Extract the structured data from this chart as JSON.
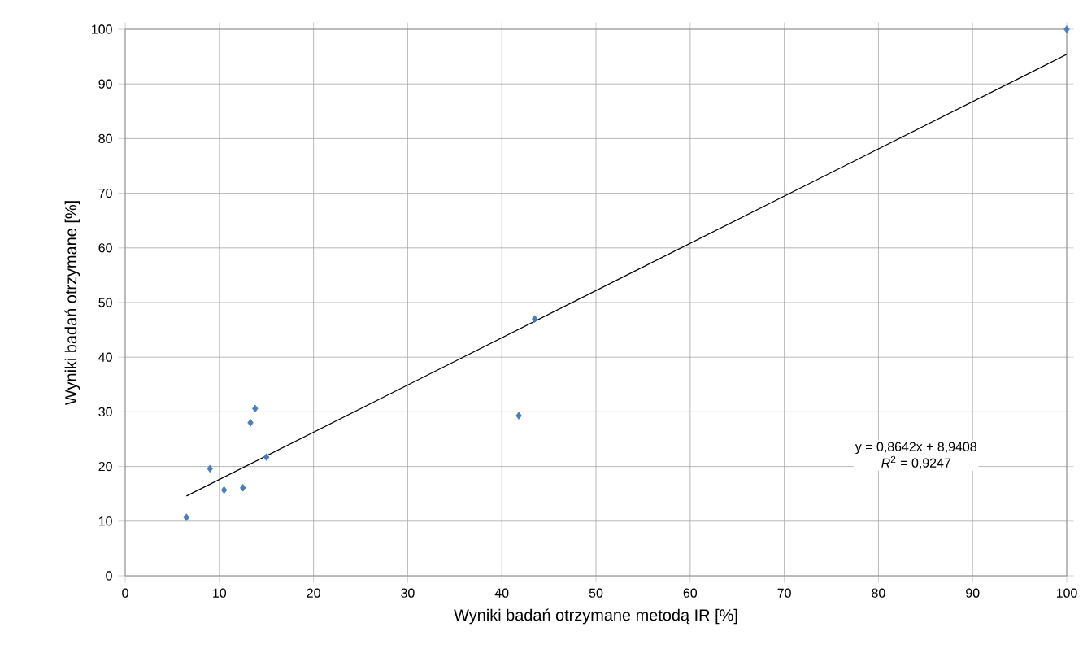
{
  "chart_data": {
    "type": "scatter",
    "xlabel": "Wyniki badań otrzymane metodą IR [%]",
    "ylabel": "Wyniki badań otrzymane [%]",
    "xlim": [
      0,
      100
    ],
    "ylim": [
      0,
      100
    ],
    "xticks": [
      0,
      10,
      20,
      30,
      40,
      50,
      60,
      70,
      80,
      90,
      100
    ],
    "yticks": [
      0,
      10,
      20,
      30,
      40,
      50,
      60,
      70,
      80,
      90,
      100
    ],
    "grid": true,
    "series": [
      {
        "marker": "diamond",
        "color": "#4a7ebb",
        "x": [
          6.5,
          9,
          10.5,
          12.5,
          13.3,
          13.8,
          15,
          41.8,
          43.5,
          100
        ],
        "values": [
          10.7,
          19.6,
          15.7,
          16.1,
          28,
          30.6,
          21.7,
          29.3,
          47,
          100
        ]
      },
      {
        "type": "line",
        "color": "#000000",
        "x": [
          6.5,
          100
        ],
        "values": [
          14.6,
          95.4
        ]
      }
    ],
    "annotations": [
      "y = 0,8642x + 8,9408",
      "*R*$^{2}$ = 0,9247"
    ]
  }
}
